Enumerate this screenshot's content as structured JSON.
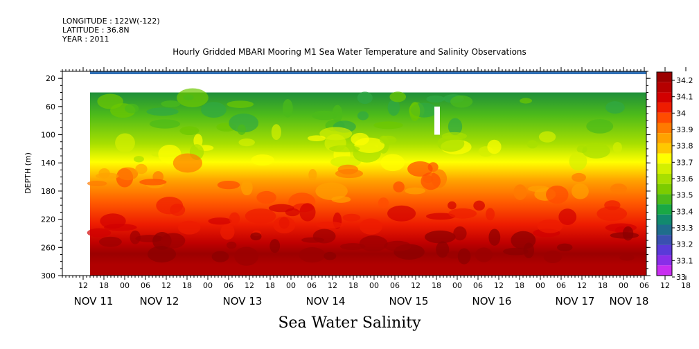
{
  "header": {
    "longitude": "LONGITUDE : 122W(-122)",
    "latitude": "LATITUDE : 36.8N",
    "year": "YEAR : 2011"
  },
  "chart_data": {
    "type": "heatmap",
    "title": "Hourly Gridded MBARI Mooring M1 Sea Water Temperature and Salinity Observations",
    "xlabel": "Sea Water Salinity",
    "ylabel": "DEPTH (m)",
    "y_ticks": [
      20,
      60,
      100,
      140,
      180,
      220,
      260,
      300
    ],
    "ylim": [
      300,
      10
    ],
    "x_hour_ticks": [
      "12",
      "18",
      "00",
      "06",
      "12",
      "18",
      "00",
      "06",
      "12",
      "18",
      "00",
      "06",
      "12",
      "18",
      "00",
      "06",
      "12",
      "18",
      "00",
      "06",
      "12",
      "18",
      "00",
      "06",
      "12",
      "18",
      "00",
      "06",
      "12",
      "18",
      "00",
      "06"
    ],
    "x_day_labels": [
      "NOV 11",
      "NOV 12",
      "NOV 13",
      "NOV 14",
      "NOV 15",
      "NOV 16",
      "NOV 17",
      "NOV 18"
    ],
    "colorbar_levels": [
      "34.2",
      "34.1",
      "34",
      "33.9",
      "33.8",
      "33.7",
      "33.6",
      "33.5",
      "33.4",
      "33.3",
      "33.2",
      "33.1",
      "33"
    ],
    "colorbar_colors": [
      "#9b0000",
      "#b60000",
      "#d20000",
      "#ee1c00",
      "#ff4c00",
      "#ff7a00",
      "#ffa200",
      "#ffc800",
      "#ffff00",
      "#d4f000",
      "#a8df00",
      "#7ccc00",
      "#4cba1a",
      "#1aa845",
      "#128a6e",
      "#1f6d8c",
      "#3a50b0",
      "#5a3ad8",
      "#8a2ee8",
      "#c82ef0"
    ],
    "depth_profile": [
      {
        "depth": 12,
        "salinity": 33.2
      },
      {
        "depth": 40,
        "salinity": 33.45
      },
      {
        "depth": 60,
        "salinity": 33.5
      },
      {
        "depth": 80,
        "salinity": 33.6
      },
      {
        "depth": 100,
        "salinity": 33.75
      },
      {
        "depth": 120,
        "salinity": 33.85
      },
      {
        "depth": 140,
        "salinity": 33.95
      },
      {
        "depth": 160,
        "salinity": 34.0
      },
      {
        "depth": 180,
        "salinity": 34.05
      },
      {
        "depth": 200,
        "salinity": 34.1
      },
      {
        "depth": 220,
        "salinity": 34.15
      },
      {
        "depth": 240,
        "salinity": 34.18
      },
      {
        "depth": 260,
        "salinity": 34.22
      },
      {
        "depth": 280,
        "salinity": 34.2
      },
      {
        "depth": 300,
        "salinity": 34.2
      }
    ]
  }
}
